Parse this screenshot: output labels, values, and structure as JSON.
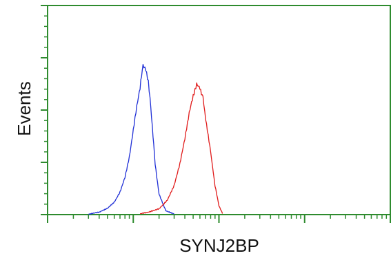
{
  "chart_data": {
    "type": "line",
    "title": "",
    "xlabel": "SYNJ2BP",
    "ylabel": "Events",
    "x_scale": "log",
    "xlim": [
      1,
      10000
    ],
    "ylim": [
      0,
      100
    ],
    "grid": false,
    "frame_color": "#2e8b2e",
    "series": [
      {
        "color": "#1f2fd6",
        "x": [
          3,
          4,
          5,
          6,
          7,
          8,
          9,
          10,
          11,
          12,
          13,
          14,
          15,
          16,
          17,
          18,
          20,
          24,
          30
        ],
        "y": [
          0.3,
          1,
          3,
          6,
          11,
          18,
          28,
          40,
          52,
          60,
          72,
          69,
          63,
          52,
          38,
          24,
          10,
          2,
          0.3
        ]
      },
      {
        "color": "#e01a1a",
        "x": [
          12,
          15,
          20,
          25,
          30,
          35,
          40,
          45,
          50,
          55,
          60,
          65,
          70,
          80,
          90,
          100,
          110
        ],
        "y": [
          0.3,
          1,
          3,
          7,
          14,
          24,
          36,
          48,
          57,
          62,
          61,
          56,
          46,
          30,
          14,
          4,
          0.5
        ]
      }
    ]
  }
}
